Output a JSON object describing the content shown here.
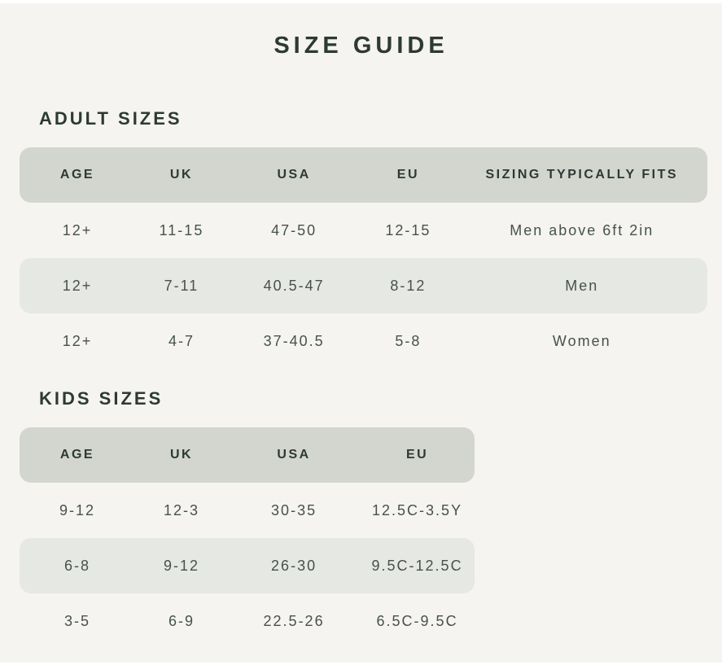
{
  "page": {
    "title": "SIZE GUIDE"
  },
  "colors": {
    "background": "#f5f4f0",
    "header_band": "#d2d6cf",
    "stripe_band": "#e6e8e3",
    "heading_text": "#2c3a33",
    "data_text": "#47514b"
  },
  "adult": {
    "heading": "ADULT SIZES",
    "columns": [
      "AGE",
      "UK",
      "USA",
      "EU",
      "SIZING TYPICALLY FITS"
    ],
    "rows": [
      [
        "12+",
        "11-15",
        "47-50",
        "12-15",
        "Men above 6ft 2in"
      ],
      [
        "12+",
        "7-11",
        "40.5-47",
        "8-12",
        "Men"
      ],
      [
        "12+",
        "4-7",
        "37-40.5",
        "5-8",
        "Women"
      ]
    ]
  },
  "kids": {
    "heading": "KIDS SIZES",
    "columns": [
      "AGE",
      "UK",
      "USA",
      "EU"
    ],
    "rows": [
      [
        "9-12",
        "12-3",
        "30-35",
        "12.5C-3.5Y"
      ],
      [
        "6-8",
        "9-12",
        "26-30",
        "9.5C-12.5C"
      ],
      [
        "3-5",
        "6-9",
        "22.5-26",
        "6.5C-9.5C"
      ]
    ]
  }
}
